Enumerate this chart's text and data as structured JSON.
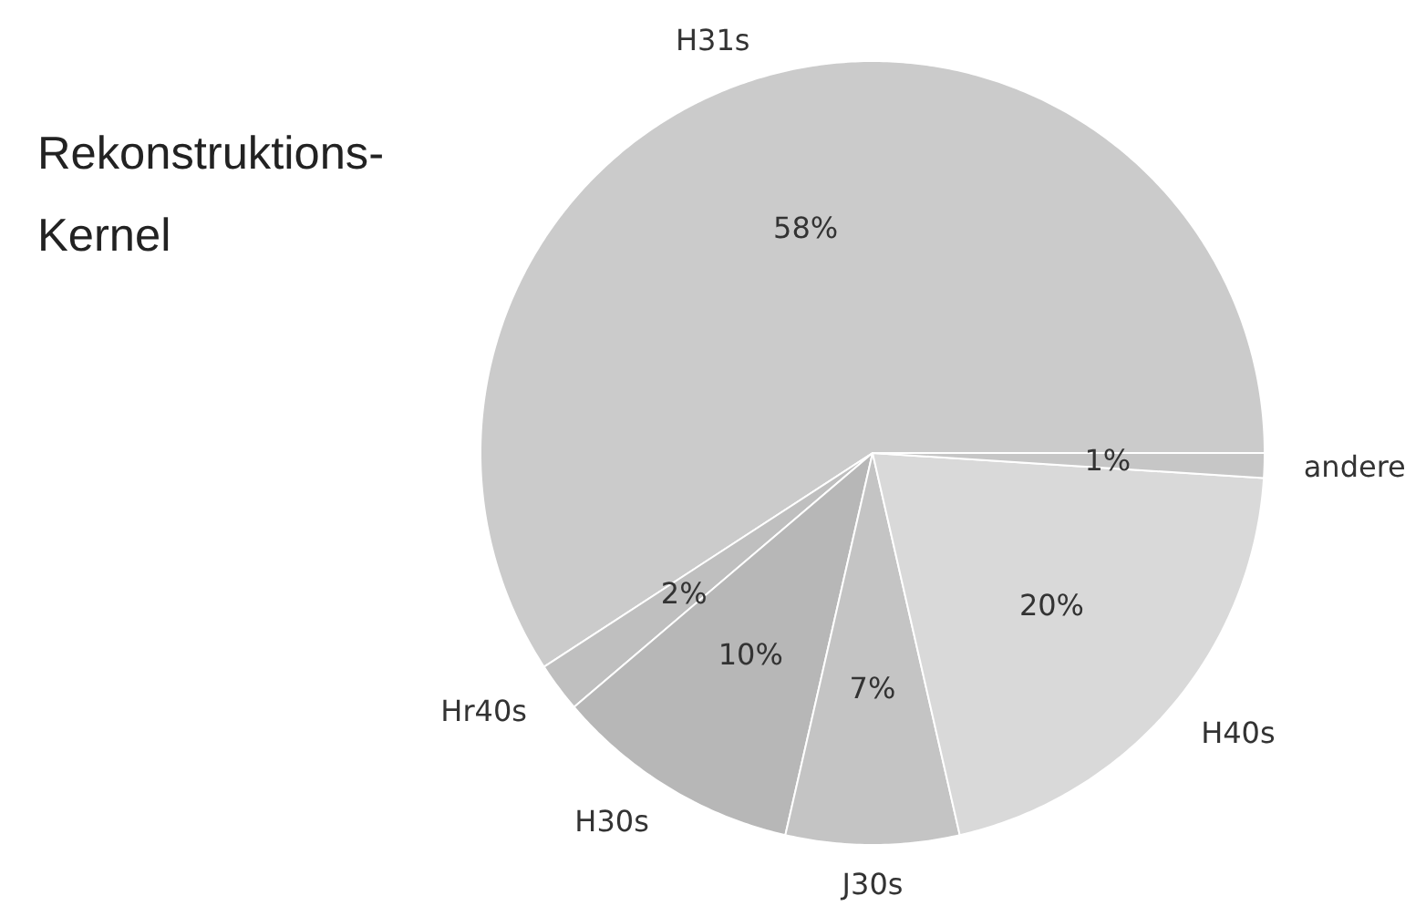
{
  "chart_data": {
    "type": "pie",
    "title": "Rekonstruktions-\nKernel",
    "categories": [
      "H31s",
      "Hr40s",
      "H30s",
      "J30s",
      "H40s",
      "andere"
    ],
    "values": [
      58,
      2,
      10,
      7,
      20,
      1
    ],
    "value_labels": [
      "58%",
      "2%",
      "10%",
      "7%",
      "20%",
      "1%"
    ],
    "colors": [
      "#cbcbcb",
      "#bfbfbf",
      "#b7b7b7",
      "#c4c4c4",
      "#d9d9d9",
      "#c6c6c6"
    ]
  }
}
